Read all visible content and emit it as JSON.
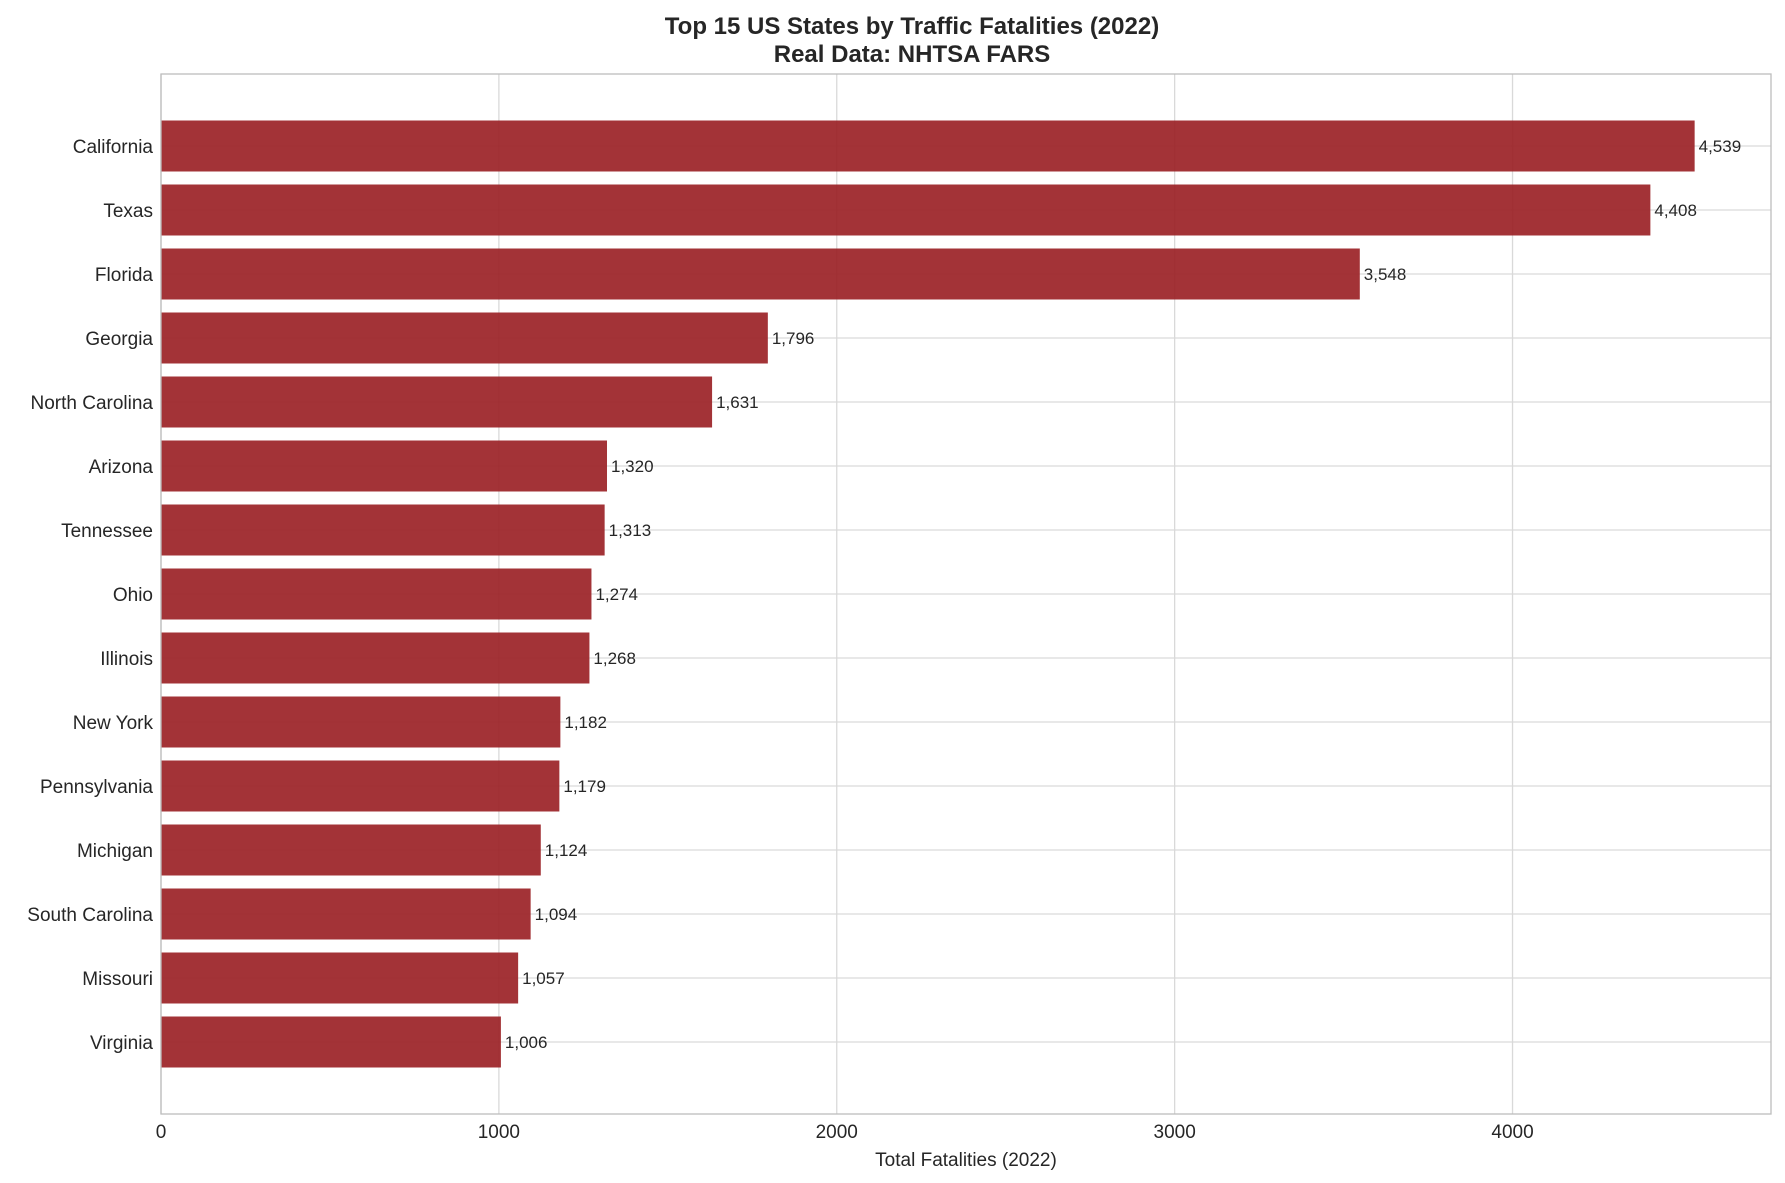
{
  "chart_data": {
    "type": "bar",
    "orientation": "horizontal",
    "title": "Top 15 US States by Traffic Fatalities (2022)",
    "subtitle": "Real Data: NHTSA FARS",
    "xlabel": "Total Fatalities (2022)",
    "ylabel": "",
    "xlim": [
      0,
      4765
    ],
    "xticks": [
      0,
      1000,
      2000,
      3000,
      4000
    ],
    "xtick_labels": [
      "0",
      "1000",
      "2000",
      "3000",
      "4000"
    ],
    "grid": true,
    "legend": "none",
    "bar_color": "#9b2226",
    "categories": [
      "California",
      "Texas",
      "Florida",
      "Georgia",
      "North Carolina",
      "Arizona",
      "Tennessee",
      "Ohio",
      "Illinois",
      "New York",
      "Pennsylvania",
      "Michigan",
      "South Carolina",
      "Missouri",
      "Virginia"
    ],
    "values": [
      4539,
      4408,
      3548,
      1796,
      1631,
      1320,
      1313,
      1274,
      1268,
      1182,
      1179,
      1124,
      1094,
      1057,
      1006
    ],
    "value_labels": [
      "4,539",
      "4,408",
      "3,548",
      "1,796",
      "1,631",
      "1,320",
      "1,313",
      "1,274",
      "1,268",
      "1,182",
      "1,179",
      "1,124",
      "1,094",
      "1,057",
      "1,006"
    ]
  }
}
